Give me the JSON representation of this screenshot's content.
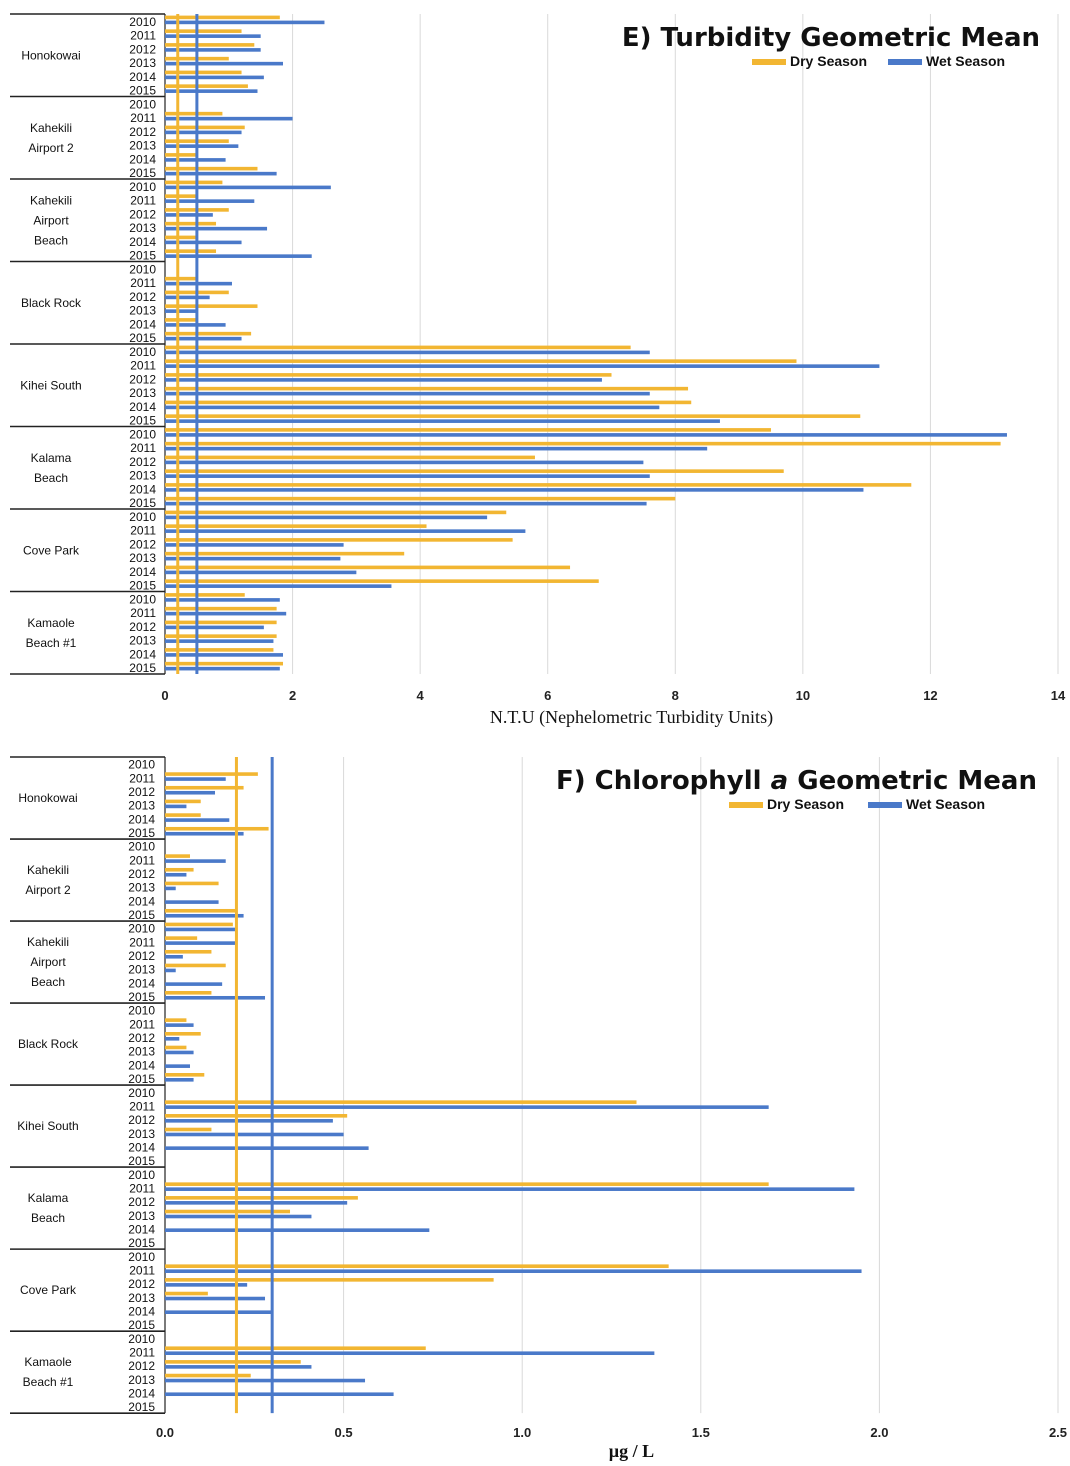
{
  "colors": {
    "dry": "#f2b632",
    "wet": "#4a79c9",
    "grid": "#d9d9d9",
    "axis": "#222222"
  },
  "chart_data": [
    {
      "type": "bar",
      "orientation": "horizontal",
      "title": "E) Turbidity  Geometric Mean",
      "xlabel": "N.T.U (Nephelometric Turbidity Units)",
      "xlim": [
        0,
        14
      ],
      "xticks": [
        "0",
        "2",
        "4",
        "6",
        "8",
        "10",
        "12",
        "14"
      ],
      "grid": true,
      "legend_position": "top-right",
      "years": [
        "2010",
        "2011",
        "2012",
        "2013",
        "2014",
        "2015"
      ],
      "reference_lines": {
        "dry": 0.2,
        "wet": 0.5
      },
      "groups": [
        {
          "name_lines": [
            "Honokowai"
          ],
          "dry": [
            1.8,
            1.2,
            1.4,
            1.0,
            1.2,
            1.3
          ],
          "wet": [
            2.5,
            1.5,
            1.5,
            1.85,
            1.55,
            1.45
          ]
        },
        {
          "name_lines": [
            "Kahekili",
            "Airport 2"
          ],
          "dry": [
            0,
            0.9,
            1.25,
            1.0,
            0.5,
            1.45
          ],
          "wet": [
            0,
            2.0,
            1.2,
            1.15,
            0.95,
            1.75
          ]
        },
        {
          "name_lines": [
            "Kahekili",
            "Airport",
            "Beach"
          ],
          "dry": [
            0.9,
            0.5,
            1.0,
            0.8,
            0.5,
            0.8
          ],
          "wet": [
            2.6,
            1.4,
            0.75,
            1.6,
            1.2,
            2.3
          ]
        },
        {
          "name_lines": [
            "Black Rock"
          ],
          "dry": [
            0,
            0.5,
            1.0,
            1.45,
            0.5,
            1.35
          ],
          "wet": [
            0,
            1.05,
            0.7,
            0.5,
            0.95,
            1.2
          ]
        },
        {
          "name_lines": [
            "Kihei South"
          ],
          "dry": [
            7.3,
            9.9,
            7.0,
            8.2,
            8.25,
            10.9
          ],
          "wet": [
            7.6,
            11.2,
            6.85,
            7.6,
            7.75,
            8.7
          ]
        },
        {
          "name_lines": [
            "Kalama",
            "Beach"
          ],
          "dry": [
            9.5,
            13.1,
            5.8,
            9.7,
            11.7,
            8.0
          ],
          "wet": [
            13.2,
            8.5,
            7.5,
            7.6,
            10.95,
            7.55
          ]
        },
        {
          "name_lines": [
            "Cove Park"
          ],
          "dry": [
            5.35,
            4.1,
            5.45,
            3.75,
            6.35,
            6.8
          ],
          "wet": [
            5.05,
            5.65,
            2.8,
            2.75,
            3.0,
            3.55
          ]
        },
        {
          "name_lines": [
            "Kamaole",
            "Beach #1"
          ],
          "dry": [
            1.25,
            1.75,
            1.75,
            1.75,
            1.7,
            1.85
          ],
          "wet": [
            1.8,
            1.9,
            1.55,
            1.7,
            1.85,
            1.8
          ]
        }
      ],
      "series": [
        {
          "name": "Dry Season"
        },
        {
          "name": "Wet Season"
        }
      ]
    },
    {
      "type": "bar",
      "orientation": "horizontal",
      "title_prefix": "F) Chlorophyll ",
      "title_italic": "a",
      "title_suffix": "  Geometric Mean",
      "xlabel": "µg / L",
      "xlim": [
        0,
        2.5
      ],
      "xticks": [
        "0.0",
        "0.5",
        "1.0",
        "1.5",
        "2.0",
        "2.5"
      ],
      "grid": true,
      "legend_position": "top-right",
      "years": [
        "2010",
        "2011",
        "2012",
        "2013",
        "2014",
        "2015"
      ],
      "reference_lines": {
        "dry": 0.2,
        "wet": 0.3
      },
      "groups": [
        {
          "name_lines": [
            "Honokowai"
          ],
          "dry": [
            0,
            0.26,
            0.22,
            0.1,
            0.1,
            0.29
          ],
          "wet": [
            0,
            0.17,
            0.14,
            0.06,
            0.18,
            0.22
          ]
        },
        {
          "name_lines": [
            "Kahekili",
            "Airport 2"
          ],
          "dry": [
            0,
            0.07,
            0.08,
            0.15,
            0.0,
            0.2
          ],
          "wet": [
            0,
            0.17,
            0.06,
            0.03,
            0.15,
            0.22
          ]
        },
        {
          "name_lines": [
            "Kahekili",
            "Airport",
            "Beach"
          ],
          "dry": [
            0.19,
            0.09,
            0.13,
            0.17,
            0.0,
            0.13
          ],
          "wet": [
            0.2,
            0.2,
            0.05,
            0.03,
            0.16,
            0.28
          ]
        },
        {
          "name_lines": [
            "Black Rock"
          ],
          "dry": [
            0,
            0.06,
            0.1,
            0.06,
            0.0,
            0.11
          ],
          "wet": [
            0,
            0.08,
            0.04,
            0.08,
            0.07,
            0.08
          ]
        },
        {
          "name_lines": [
            "Kihei South"
          ],
          "dry": [
            0,
            1.32,
            0.51,
            0.13,
            0.0,
            0
          ],
          "wet": [
            0,
            1.69,
            0.47,
            0.5,
            0.57,
            0
          ]
        },
        {
          "name_lines": [
            "Kalama",
            "Beach"
          ],
          "dry": [
            0,
            1.69,
            0.54,
            0.35,
            0.0,
            0
          ],
          "wet": [
            0,
            1.93,
            0.51,
            0.41,
            0.74,
            0
          ]
        },
        {
          "name_lines": [
            "Cove Park"
          ],
          "dry": [
            0,
            1.41,
            0.92,
            0.12,
            0.0,
            0
          ],
          "wet": [
            0,
            1.95,
            0.23,
            0.28,
            0.3,
            0
          ]
        },
        {
          "name_lines": [
            "Kamaole",
            "Beach #1"
          ],
          "dry": [
            0,
            0.73,
            0.38,
            0.24,
            0.0,
            0
          ],
          "wet": [
            0,
            1.37,
            0.41,
            0.56,
            0.64,
            0
          ]
        }
      ],
      "series": [
        {
          "name": "Dry Season"
        },
        {
          "name": "Wet Season"
        }
      ]
    }
  ]
}
